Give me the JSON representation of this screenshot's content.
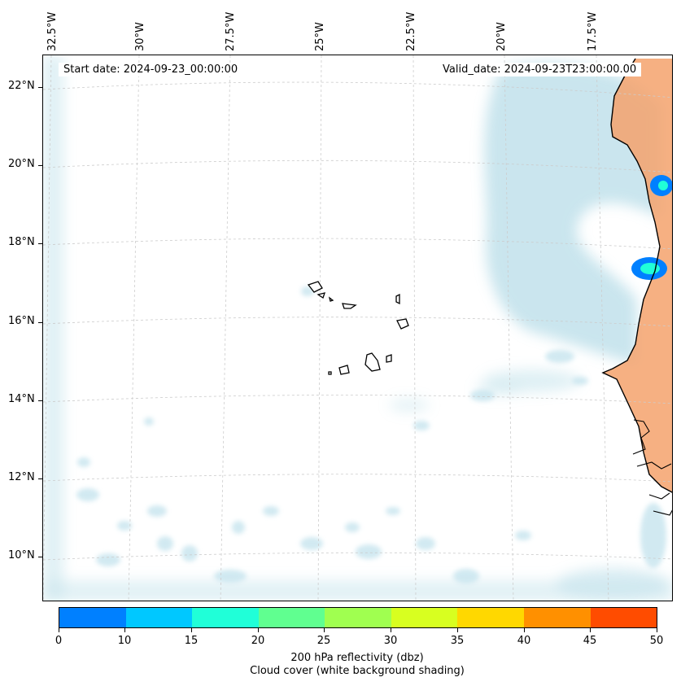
{
  "map": {
    "lon_labels": [
      "32.5°W",
      "30°W",
      "27.5°W",
      "25°W",
      "22.5°W",
      "20°W",
      "17.5°W"
    ],
    "lat_labels": [
      "22°N",
      "20°N",
      "18°N",
      "16°N",
      "14°N",
      "12°N",
      "10°N"
    ],
    "start_date": "Start date: 2024-09-23_00:00:00",
    "valid_date": "Valid_date: 2024-09-23T23:00:00.00"
  },
  "colorbar": {
    "colors": [
      "#0080ff",
      "#00c8ff",
      "#20ffd8",
      "#60ff90",
      "#a0ff50",
      "#d8ff20",
      "#ffd800",
      "#ff9000",
      "#ff4c00"
    ],
    "tick_labels": [
      "0",
      "10",
      "15",
      "20",
      "25",
      "30",
      "35",
      "40",
      "45",
      "50"
    ],
    "title_line1": "200 hPa reflectivity (dbz)",
    "title_line2": "Cloud cover (white background shading)"
  },
  "colors": {
    "cloud": "#b8dde8",
    "land": "#f5a26c",
    "echo_outer": "#0080ff",
    "echo_inner": "#20ffd8"
  }
}
